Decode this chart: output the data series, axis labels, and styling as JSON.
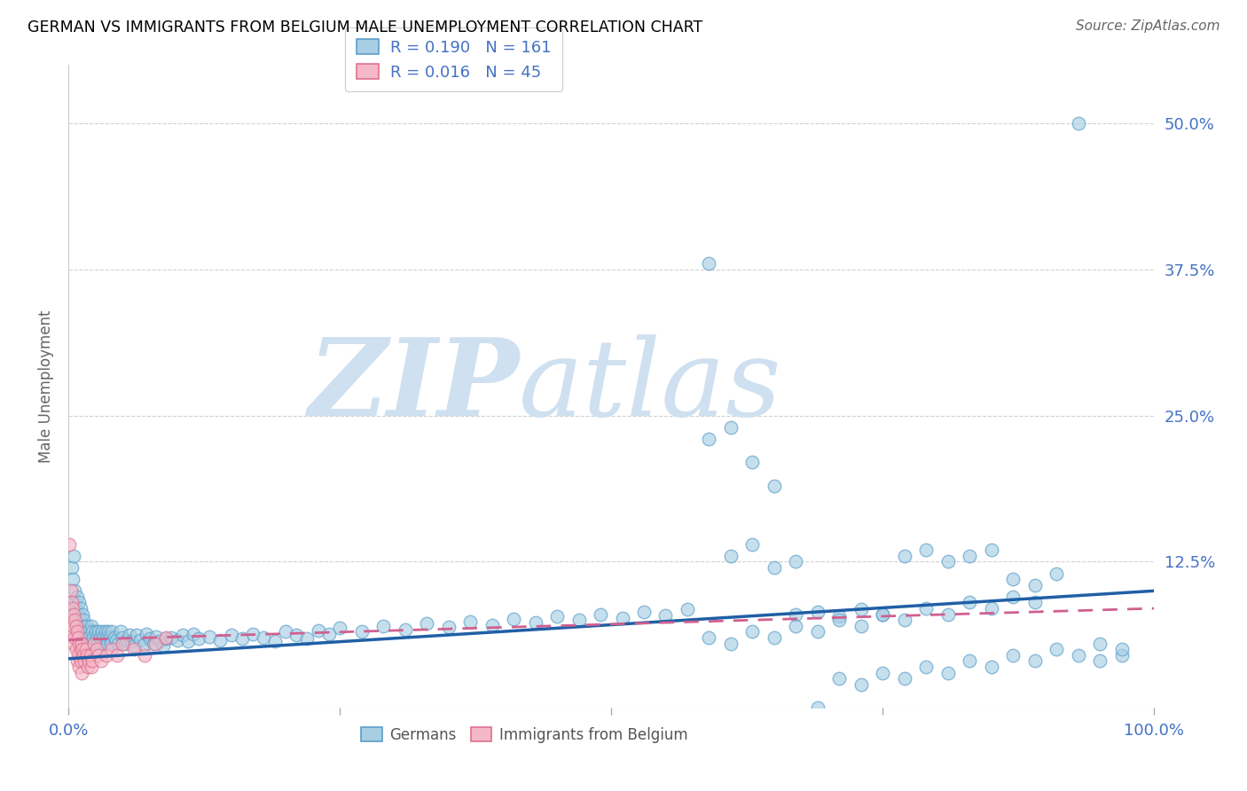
{
  "title": "GERMAN VS IMMIGRANTS FROM BELGIUM MALE UNEMPLOYMENT CORRELATION CHART",
  "source": "Source: ZipAtlas.com",
  "ylabel": "Male Unemployment",
  "watermark_zip": "ZIP",
  "watermark_atlas": "atlas",
  "legend_line1": "R = 0.190   N = 161",
  "legend_line2": "R = 0.016   N = 45",
  "R_german": 0.19,
  "N_german": 161,
  "R_belgium": 0.016,
  "N_belgium": 45,
  "xlim": [
    0.0,
    1.0
  ],
  "ylim": [
    0.0,
    0.55
  ],
  "yticks": [
    0.0,
    0.125,
    0.25,
    0.375,
    0.5
  ],
  "ytick_labels": [
    "",
    "12.5%",
    "25.0%",
    "37.5%",
    "50.0%"
  ],
  "xticks": [
    0.0,
    0.25,
    0.5,
    0.75,
    1.0
  ],
  "xtick_labels": [
    "0.0%",
    "",
    "",
    "",
    "100.0%"
  ],
  "color_german": "#a8cee4",
  "color_belgium": "#f4b8c8",
  "edge_german": "#5a9ec9",
  "edge_belgium": "#e07090",
  "line_color_german": "#1f5fa6",
  "line_color_belgium": "#d06090",
  "background_color": "#ffffff",
  "axis_color": "#4472C4",
  "title_color": "#000000",
  "grid_color": "#cccccc",
  "german_x": [
    0.002,
    0.003,
    0.004,
    0.004,
    0.005,
    0.005,
    0.006,
    0.006,
    0.007,
    0.007,
    0.008,
    0.008,
    0.009,
    0.009,
    0.01,
    0.01,
    0.011,
    0.011,
    0.012,
    0.012,
    0.013,
    0.013,
    0.014,
    0.015,
    0.016,
    0.016,
    0.017,
    0.018,
    0.019,
    0.02,
    0.021,
    0.022,
    0.023,
    0.024,
    0.025,
    0.026,
    0.027,
    0.028,
    0.029,
    0.03,
    0.031,
    0.032,
    0.033,
    0.034,
    0.035,
    0.036,
    0.037,
    0.038,
    0.039,
    0.04,
    0.042,
    0.044,
    0.046,
    0.048,
    0.05,
    0.052,
    0.054,
    0.056,
    0.058,
    0.06,
    0.063,
    0.066,
    0.069,
    0.072,
    0.075,
    0.078,
    0.081,
    0.084,
    0.087,
    0.09,
    0.095,
    0.1,
    0.105,
    0.11,
    0.115,
    0.12,
    0.13,
    0.14,
    0.15,
    0.16,
    0.17,
    0.18,
    0.19,
    0.2,
    0.21,
    0.22,
    0.23,
    0.24,
    0.25,
    0.27,
    0.29,
    0.31,
    0.33,
    0.35,
    0.37,
    0.39,
    0.41,
    0.43,
    0.45,
    0.47,
    0.49,
    0.51,
    0.53,
    0.55,
    0.57,
    0.59,
    0.61,
    0.63,
    0.65,
    0.67,
    0.69,
    0.71,
    0.73,
    0.75,
    0.77,
    0.79,
    0.81,
    0.83,
    0.85,
    0.87,
    0.89,
    0.91,
    0.93,
    0.95,
    0.97,
    0.59,
    0.61,
    0.63,
    0.65,
    0.67,
    0.69,
    0.71,
    0.73,
    0.75,
    0.77,
    0.79,
    0.81,
    0.83,
    0.85,
    0.87,
    0.89,
    0.91,
    0.93,
    0.95,
    0.97,
    0.59,
    0.61,
    0.63,
    0.65,
    0.67,
    0.69,
    0.71,
    0.73,
    0.75,
    0.77,
    0.79,
    0.81,
    0.83,
    0.85,
    0.87,
    0.89
  ],
  "german_y": [
    0.09,
    0.12,
    0.11,
    0.08,
    0.13,
    0.07,
    0.1,
    0.09,
    0.085,
    0.075,
    0.095,
    0.065,
    0.08,
    0.07,
    0.09,
    0.06,
    0.075,
    0.085,
    0.07,
    0.065,
    0.08,
    0.06,
    0.075,
    0.07,
    0.065,
    0.055,
    0.07,
    0.065,
    0.06,
    0.055,
    0.07,
    0.065,
    0.06,
    0.055,
    0.065,
    0.06,
    0.055,
    0.065,
    0.06,
    0.055,
    0.065,
    0.06,
    0.055,
    0.065,
    0.06,
    0.055,
    0.065,
    0.06,
    0.055,
    0.065,
    0.06,
    0.058,
    0.055,
    0.065,
    0.06,
    0.055,
    0.058,
    0.062,
    0.057,
    0.053,
    0.062,
    0.058,
    0.054,
    0.063,
    0.059,
    0.055,
    0.061,
    0.057,
    0.053,
    0.059,
    0.06,
    0.058,
    0.062,
    0.057,
    0.063,
    0.059,
    0.061,
    0.058,
    0.062,
    0.059,
    0.063,
    0.06,
    0.057,
    0.065,
    0.062,
    0.059,
    0.066,
    0.063,
    0.068,
    0.065,
    0.07,
    0.067,
    0.072,
    0.069,
    0.074,
    0.071,
    0.076,
    0.073,
    0.078,
    0.075,
    0.08,
    0.077,
    0.082,
    0.079,
    0.084,
    0.23,
    0.24,
    0.21,
    0.19,
    0.08,
    0.082,
    0.078,
    0.084,
    0.08,
    0.13,
    0.135,
    0.125,
    0.13,
    0.135,
    0.11,
    0.105,
    0.115,
    0.5,
    0.04,
    0.045,
    0.38,
    0.13,
    0.14,
    0.12,
    0.125,
    0.0,
    0.025,
    0.02,
    0.03,
    0.025,
    0.035,
    0.03,
    0.04,
    0.035,
    0.045,
    0.04,
    0.05,
    0.045,
    0.055,
    0.05,
    0.06,
    0.055,
    0.065,
    0.06,
    0.07,
    0.065,
    0.075,
    0.07,
    0.08,
    0.075,
    0.085,
    0.08,
    0.09,
    0.085,
    0.095,
    0.09
  ],
  "belgium_x": [
    0.001,
    0.002,
    0.002,
    0.003,
    0.003,
    0.004,
    0.004,
    0.005,
    0.005,
    0.006,
    0.006,
    0.007,
    0.007,
    0.008,
    0.008,
    0.009,
    0.009,
    0.01,
    0.01,
    0.011,
    0.011,
    0.012,
    0.012,
    0.013,
    0.014,
    0.015,
    0.016,
    0.017,
    0.018,
    0.019,
    0.02,
    0.021,
    0.022,
    0.024,
    0.026,
    0.028,
    0.03,
    0.035,
    0.04,
    0.045,
    0.05,
    0.06,
    0.07,
    0.08,
    0.09
  ],
  "belgium_y": [
    0.14,
    0.1,
    0.075,
    0.09,
    0.065,
    0.085,
    0.07,
    0.08,
    0.055,
    0.075,
    0.06,
    0.07,
    0.05,
    0.065,
    0.04,
    0.06,
    0.045,
    0.055,
    0.035,
    0.05,
    0.04,
    0.055,
    0.03,
    0.05,
    0.045,
    0.04,
    0.05,
    0.045,
    0.035,
    0.04,
    0.045,
    0.035,
    0.04,
    0.055,
    0.05,
    0.045,
    0.04,
    0.045,
    0.05,
    0.045,
    0.055,
    0.05,
    0.045,
    0.055,
    0.06
  ],
  "blue_line_x": [
    0.0,
    1.0
  ],
  "blue_line_y": [
    0.042,
    0.1
  ],
  "pink_line_x": [
    0.0,
    1.0
  ],
  "pink_line_y": [
    0.058,
    0.085
  ]
}
